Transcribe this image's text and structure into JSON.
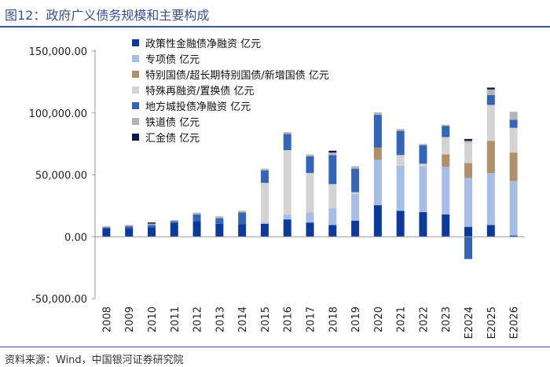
{
  "header": {
    "title": "图12：政府广义债务规模和主要构成"
  },
  "footer": {
    "source": "资料来源：Wind，中国银河证券研究院"
  },
  "chart_data": {
    "type": "bar",
    "stacked": true,
    "title": "图12：政府广义债务规模和主要构成",
    "xlabel": "",
    "ylabel": "",
    "ylim": [
      -50000,
      150000
    ],
    "yticks": [
      -50000,
      0,
      50000,
      100000,
      150000
    ],
    "ytick_labels": [
      "-50,000.00",
      "0.00",
      "50,000.00",
      "100,000.00",
      "150,000.00"
    ],
    "categories": [
      "2008",
      "2009",
      "2010",
      "2011",
      "2012",
      "2013",
      "2014",
      "2015",
      "2016",
      "2017",
      "2018",
      "2019",
      "2020",
      "2021",
      "2022",
      "2023",
      "E2024",
      "E2025",
      "E2026"
    ],
    "legend_position": "top-left",
    "series": [
      {
        "name": "政策性金融债净融资 亿元",
        "color": "#0d3a9a",
        "values": [
          6500,
          7000,
          7500,
          11000,
          12500,
          10500,
          10000,
          10500,
          14000,
          11500,
          9500,
          13000,
          25500,
          21000,
          20000,
          18000,
          8000,
          9500,
          1000
        ]
      },
      {
        "name": "专项债 亿元",
        "color": "#a7bce6",
        "values": [
          0,
          0,
          0,
          0,
          0,
          0,
          0,
          1000,
          4000,
          8000,
          13500,
          21500,
          36500,
          36500,
          37000,
          38500,
          39500,
          42000,
          44000
        ]
      },
      {
        "name": "特别国债/超长期特别国债/新增国债 亿元",
        "color": "#b0906a",
        "values": [
          0,
          0,
          0,
          0,
          0,
          0,
          0,
          0,
          0,
          0,
          0,
          0,
          10000,
          0,
          0,
          10000,
          12000,
          26000,
          23000
        ]
      },
      {
        "name": "特殊再融资/置换债 亿元",
        "color": "#d3d3d3",
        "values": [
          0,
          0,
          0,
          0,
          0,
          0,
          0,
          32000,
          52000,
          32000,
          19500,
          1500,
          0,
          8500,
          2000,
          14000,
          16500,
          29000,
          20000
        ]
      },
      {
        "name": "地方城投债净融资 亿元",
        "color": "#3565b5",
        "values": [
          1000,
          1500,
          2000,
          1500,
          5500,
          4500,
          9500,
          10000,
          13000,
          13500,
          23500,
          19000,
          26500,
          19500,
          15000,
          9000,
          -18000,
          8000,
          6500
        ]
      },
      {
        "name": "铁道债 亿元",
        "color": "#b4b4b4",
        "values": [
          1000,
          1200,
          1000,
          1000,
          1500,
          1500,
          1500,
          1500,
          1500,
          1500,
          2000,
          2000,
          2000,
          1500,
          1000,
          1000,
          1500,
          4500,
          6500
        ]
      },
      {
        "name": "汇金债 亿元",
        "color": "#0a1e4c",
        "values": [
          0,
          0,
          1000,
          0,
          0,
          0,
          0,
          0,
          0,
          0,
          1500,
          0,
          0,
          0,
          0,
          0,
          1500,
          1500,
          0
        ]
      }
    ]
  }
}
